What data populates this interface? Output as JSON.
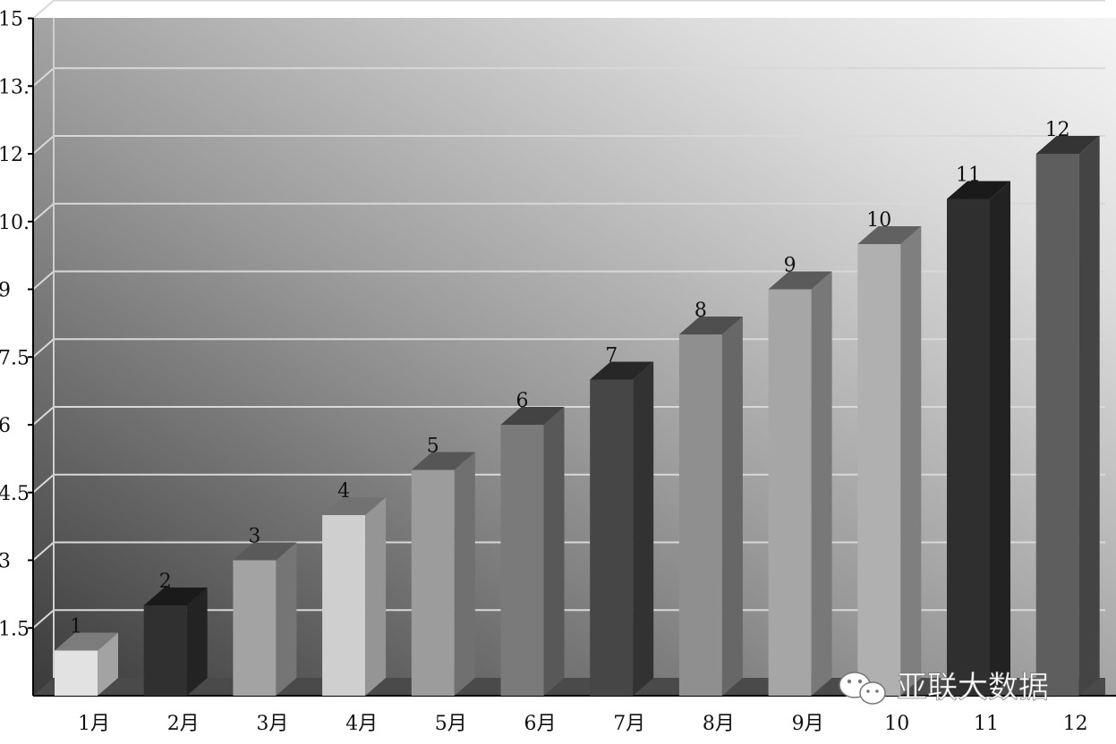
{
  "chart_data": {
    "type": "bar",
    "title": "",
    "xlabel": "",
    "ylabel": "",
    "ylim": [
      0,
      15
    ],
    "y_ticks": [
      "1.5",
      "3",
      "4.5",
      "6",
      "7.5",
      "9",
      "10.",
      "12",
      "13.",
      "15"
    ],
    "categories": [
      "1月",
      "2月",
      "3月",
      "4月",
      "5月",
      "6月",
      "7月",
      "8月",
      "9月",
      "10",
      "11",
      "12"
    ],
    "values": [
      1,
      2,
      3,
      4,
      5,
      6,
      7,
      8,
      9,
      10,
      11,
      12
    ],
    "data_labels": [
      "1",
      "2",
      "3",
      "4",
      "5",
      "6",
      "7",
      "8",
      "9",
      "10",
      "11",
      "12"
    ],
    "bar_colors": [
      "#e2e2e2",
      "#303030",
      "#a3a3a3",
      "#cfcfcf",
      "#9c9c9c",
      "#7a7a7a",
      "#464646",
      "#8f8f8f",
      "#a6a6a6",
      "#b0b0b0",
      "#2f2f2f",
      "#5e5e5e"
    ],
    "grid": true,
    "legend": "none",
    "style": "3d-bar"
  },
  "watermark": {
    "text": "亚联大数据",
    "icon": "wechat-icon"
  }
}
